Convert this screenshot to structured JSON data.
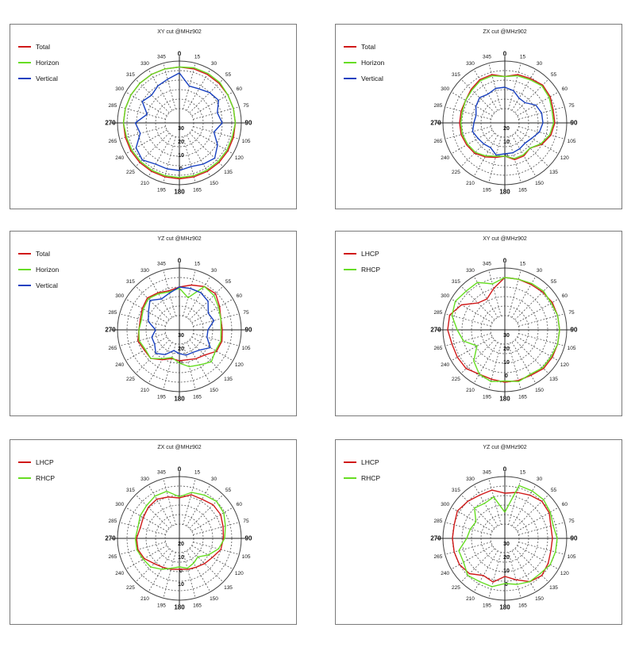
{
  "charts": {
    "chart_data": [
      {
        "type": "polar",
        "title": "XY cut @MHz902",
        "angle_labels": [
          "0",
          "15",
          "30",
          "55",
          "60",
          "75",
          "90",
          "105",
          "120",
          "135",
          "150",
          "165",
          "180",
          "195",
          "210",
          "225",
          "240",
          "265",
          "270",
          "285",
          "300",
          "315",
          "330",
          "345"
        ],
        "r_labels": [
          "30",
          "20",
          "10",
          "0"
        ],
        "r_range": [
          -40,
          0
        ],
        "grid": true,
        "legend_position": "top-left",
        "series": [
          {
            "name": "Total",
            "color": "#d01818",
            "values": [
              -5,
              -5,
              -5,
              -5,
              -5,
              -5,
              -5,
              -5,
              -5,
              -5,
              -5,
              -5,
              -5,
              -5,
              -5,
              -5,
              -5,
              -5,
              -5,
              -5,
              -5,
              -5,
              -5,
              -5
            ]
          },
          {
            "name": "Horizon",
            "color": "#66dd22",
            "values": [
              -5,
              -4,
              -4,
              -4,
              -5,
              -5,
              -5,
              -6,
              -6,
              -6,
              -6,
              -6,
              -6,
              -6,
              -6,
              -6,
              -6,
              -6,
              -5,
              -5,
              -5,
              -5,
              -5,
              -5
            ]
          },
          {
            "name": "Vertical",
            "color": "#1840c0",
            "values": [
              -10,
              -20,
              -19,
              -16,
              -14,
              -19,
              -16,
              -22,
              -15,
              -10,
              -12,
              -14,
              -12,
              -12,
              -12,
              -8,
              -10,
              -18,
              -15,
              -24,
              -16,
              -19,
              -16,
              -14
            ]
          }
        ]
      },
      {
        "type": "polar",
        "title": "ZX cut @MHz902",
        "angle_labels": [
          "0",
          "15",
          "30",
          "55",
          "60",
          "75",
          "90",
          "105",
          "120",
          "135",
          "150",
          "165",
          "180",
          "195",
          "210",
          "225",
          "240",
          "265",
          "270",
          "285",
          "300",
          "315",
          "330",
          "345"
        ],
        "r_labels": [
          "20",
          "10",
          "0"
        ],
        "r_range": [
          -40,
          0
        ],
        "grid": true,
        "legend_position": "top-left",
        "series": [
          {
            "name": "Total",
            "color": "#d01818",
            "values": [
              -13,
              -10,
              -9,
              -7,
              -8,
              -10,
              -10,
              -12,
              -16,
              -22,
              -20,
              -20,
              -24,
              -22,
              -19,
              -16,
              -15,
              -14,
              -14,
              -14,
              -14,
              -12,
              -10,
              -10
            ]
          },
          {
            "name": "Horizon",
            "color": "#66dd22",
            "values": [
              -13,
              -11,
              -10,
              -8,
              -9,
              -11,
              -11,
              -13,
              -17,
              -22,
              -21,
              -21,
              -24,
              -23,
              -20,
              -17,
              -16,
              -15,
              -15,
              -15,
              -14,
              -13,
              -11,
              -11
            ]
          },
          {
            "name": "Vertical",
            "color": "#1840c0",
            "values": [
              -22,
              -24,
              -28,
              -28,
              -22,
              -20,
              -20,
              -22,
              -26,
              -28,
              -27,
              -26,
              -26,
              -24,
              -28,
              -27,
              -26,
              -24,
              -26,
              -27,
              -24,
              -22,
              -24,
              -22
            ]
          }
        ]
      },
      {
        "type": "polar",
        "title": "YZ cut @MHz902",
        "angle_labels": [
          "0",
          "15",
          "30",
          "55",
          "60",
          "75",
          "90",
          "105",
          "120",
          "135",
          "150",
          "165",
          "180",
          "195",
          "210",
          "225",
          "240",
          "265",
          "270",
          "285",
          "300",
          "315",
          "330",
          "345"
        ],
        "r_labels": [
          "30",
          "20",
          "0"
        ],
        "r_range": [
          -40,
          0
        ],
        "grid": true,
        "legend_position": "top-left",
        "series": [
          {
            "name": "Total",
            "color": "#d01818",
            "values": [
              -16,
              -13,
              -10,
              -9,
              -13,
              -16,
              -16,
              -15,
              -16,
              -22,
              -24,
              -26,
              -26,
              -27,
              -23,
              -18,
              -18,
              -16,
              -18,
              -18,
              -16,
              -14,
              -16,
              -18
            ]
          },
          {
            "name": "Horizon",
            "color": "#66dd22",
            "values": [
              -17,
              -24,
              -10,
              -11,
              -14,
              -16,
              -17,
              -16,
              -17,
              -14,
              -18,
              -20,
              -24,
              -28,
              -24,
              -18,
              -19,
              -17,
              -18,
              -19,
              -17,
              -15,
              -17,
              -19
            ]
          },
          {
            "name": "Vertical",
            "color": "#1840c0",
            "values": [
              -16,
              -16,
              -16,
              -18,
              -24,
              -22,
              -28,
              -28,
              -22,
              -28,
              -30,
              -30,
              -32,
              -34,
              -28,
              -24,
              -28,
              -28,
              -32,
              -25,
              -22,
              -17,
              -22,
              -20
            ]
          }
        ]
      },
      {
        "type": "polar",
        "title": "XY cut @MHz902",
        "angle_labels": [
          "0",
          "15",
          "30",
          "55",
          "60",
          "75",
          "90",
          "105",
          "120",
          "135",
          "150",
          "165",
          "180",
          "195",
          "210",
          "225",
          "240",
          "265",
          "270",
          "285",
          "300",
          "315",
          "330",
          "345"
        ],
        "r_labels": [
          "30",
          "20",
          "10",
          "0"
        ],
        "r_range": [
          -40,
          0
        ],
        "grid": true,
        "legend_position": "top-left",
        "series": [
          {
            "name": "LHCP",
            "color": "#d01818",
            "values": [
              -8,
              -8,
              -8,
              -7,
              -6,
              -6,
              -6,
              -6,
              -6,
              -6,
              -8,
              -8,
              -8,
              -9,
              -9,
              -6,
              -6,
              -6,
              -4,
              -4,
              -10,
              -20,
              -22,
              -16
            ]
          },
          {
            "name": "RHCP",
            "color": "#66dd22",
            "values": [
              -8,
              -8,
              -7,
              -6,
              -7,
              -6,
              -6,
              -6,
              -7,
              -7,
              -9,
              -7,
              -9,
              -7,
              -9,
              -15,
              -25,
              -16,
              -12,
              -6,
              -4,
              -6,
              -6,
              -12
            ]
          }
        ]
      },
      {
        "type": "polar",
        "title": "ZX cut @MHz902",
        "angle_labels": [
          "0",
          "15",
          "30",
          "55",
          "60",
          "75",
          "90",
          "105",
          "120",
          "135",
          "150",
          "165",
          "180",
          "195",
          "210",
          "225",
          "240",
          "265",
          "270",
          "285",
          "300",
          "315",
          "330",
          "345"
        ],
        "r_labels": [
          "20",
          "10",
          "0",
          "10"
        ],
        "r_range": [
          -40,
          0
        ],
        "grid": true,
        "legend_position": "top-left",
        "series": [
          {
            "name": "LHCP",
            "color": "#d01818",
            "values": [
              -18,
              -14,
              -14,
              -12,
              -12,
              -14,
              -15,
              -16,
              -20,
              -22,
              -24,
              -25,
              -26,
              -25,
              -24,
              -22,
              -18,
              -16,
              -16,
              -18,
              -17,
              -15,
              -14,
              -16
            ]
          },
          {
            "name": "RHCP",
            "color": "#66dd22",
            "values": [
              -17,
              -12,
              -10,
              -8,
              -9,
              -12,
              -14,
              -18,
              -24,
              -30,
              -28,
              -26,
              -28,
              -26,
              -22,
              -18,
              -17,
              -15,
              -15,
              -16,
              -14,
              -13,
              -11,
              -11
            ]
          }
        ]
      },
      {
        "type": "polar",
        "title": "YZ cut @MHz902",
        "angle_labels": [
          "0",
          "15",
          "30",
          "55",
          "60",
          "75",
          "90",
          "105",
          "120",
          "135",
          "150",
          "165",
          "180",
          "195",
          "210",
          "225",
          "240",
          "265",
          "270",
          "285",
          "300",
          "315",
          "330",
          "345"
        ],
        "r_labels": [
          "30",
          "20",
          "10",
          "0"
        ],
        "r_range": [
          -40,
          0
        ],
        "grid": true,
        "legend_position": "top-left",
        "series": [
          {
            "name": "LHCP",
            "color": "#d01818",
            "values": [
              -14,
              -12,
              -10,
              -8,
              -9,
              -12,
              -12,
              -12,
              -10,
              -8,
              -10,
              -16,
              -20,
              -14,
              -16,
              -10,
              -8,
              -8,
              -8,
              -8,
              -6,
              -8,
              -10,
              -10
            ]
          },
          {
            "name": "RHCP",
            "color": "#66dd22",
            "values": [
              -30,
              -6,
              -6,
              -6,
              -8,
              -10,
              -8,
              -8,
              -8,
              -10,
              -10,
              -12,
              -14,
              -10,
              -10,
              -8,
              -12,
              -12,
              -20,
              -22,
              -24,
              -16,
              -18,
              -16
            ]
          }
        ]
      }
    ]
  }
}
